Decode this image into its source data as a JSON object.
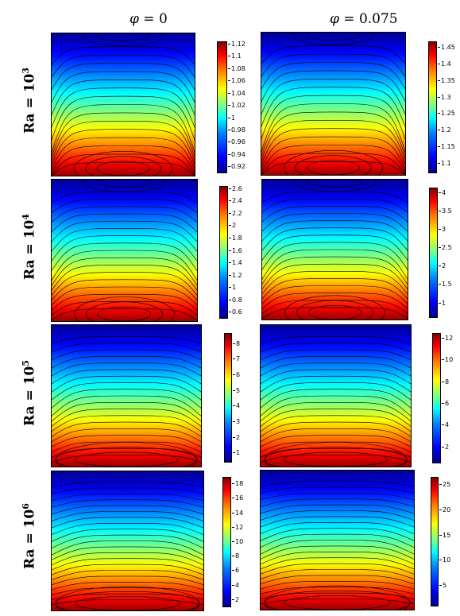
{
  "columns": [
    {
      "symbol": "φ",
      "eq": " = 0"
    },
    {
      "symbol": "φ",
      "eq": " = 0.075"
    }
  ],
  "rows": [
    {
      "label": "Ra = 10",
      "exp": "3"
    },
    {
      "label": "Ra = 10",
      "exp": "4"
    },
    {
      "label": "Ra = 10",
      "exp": "5"
    },
    {
      "label": "Ra = 10",
      "exp": "6"
    }
  ],
  "colorbars": [
    {
      "ticks": [
        "1.12",
        "1.1",
        "1.08",
        "1.06",
        "1.04",
        "1.02",
        "1",
        "0.98",
        "0.96",
        "0.94",
        "0.92"
      ],
      "min": 0.91,
      "max": 1.125
    },
    {
      "ticks": [
        "1.45",
        "1.4",
        "1.35",
        "1.3",
        "1.25",
        "1.2",
        "1.15",
        "1.1"
      ],
      "min": 1.07,
      "max": 1.47
    },
    {
      "ticks": [
        "2.6",
        "2.4",
        "2.2",
        "2",
        "1.8",
        "1.6",
        "1.4",
        "1.2",
        "1",
        "0.8",
        "0.6"
      ],
      "min": 0.5,
      "max": 2.65
    },
    {
      "ticks": [
        "4",
        "3.5",
        "3",
        "2.5",
        "2",
        "1.5",
        "1"
      ],
      "min": 0.6,
      "max": 4.15
    },
    {
      "ticks": [
        "8",
        "7",
        "6",
        "5",
        "4",
        "3",
        "2",
        "1"
      ],
      "min": 0.4,
      "max": 8.7
    },
    {
      "ticks": [
        "12",
        "10",
        "8",
        "6",
        "4",
        "2"
      ],
      "min": 0.5,
      "max": 12.5
    },
    {
      "ticks": [
        "18",
        "16",
        "14",
        "12",
        "10",
        "8",
        "6",
        "4",
        "2"
      ],
      "min": 1.0,
      "max": 19.0
    },
    {
      "ticks": [
        "25",
        "20",
        "15",
        "10",
        "5"
      ],
      "min": 1.0,
      "max": 26.5
    }
  ]
}
